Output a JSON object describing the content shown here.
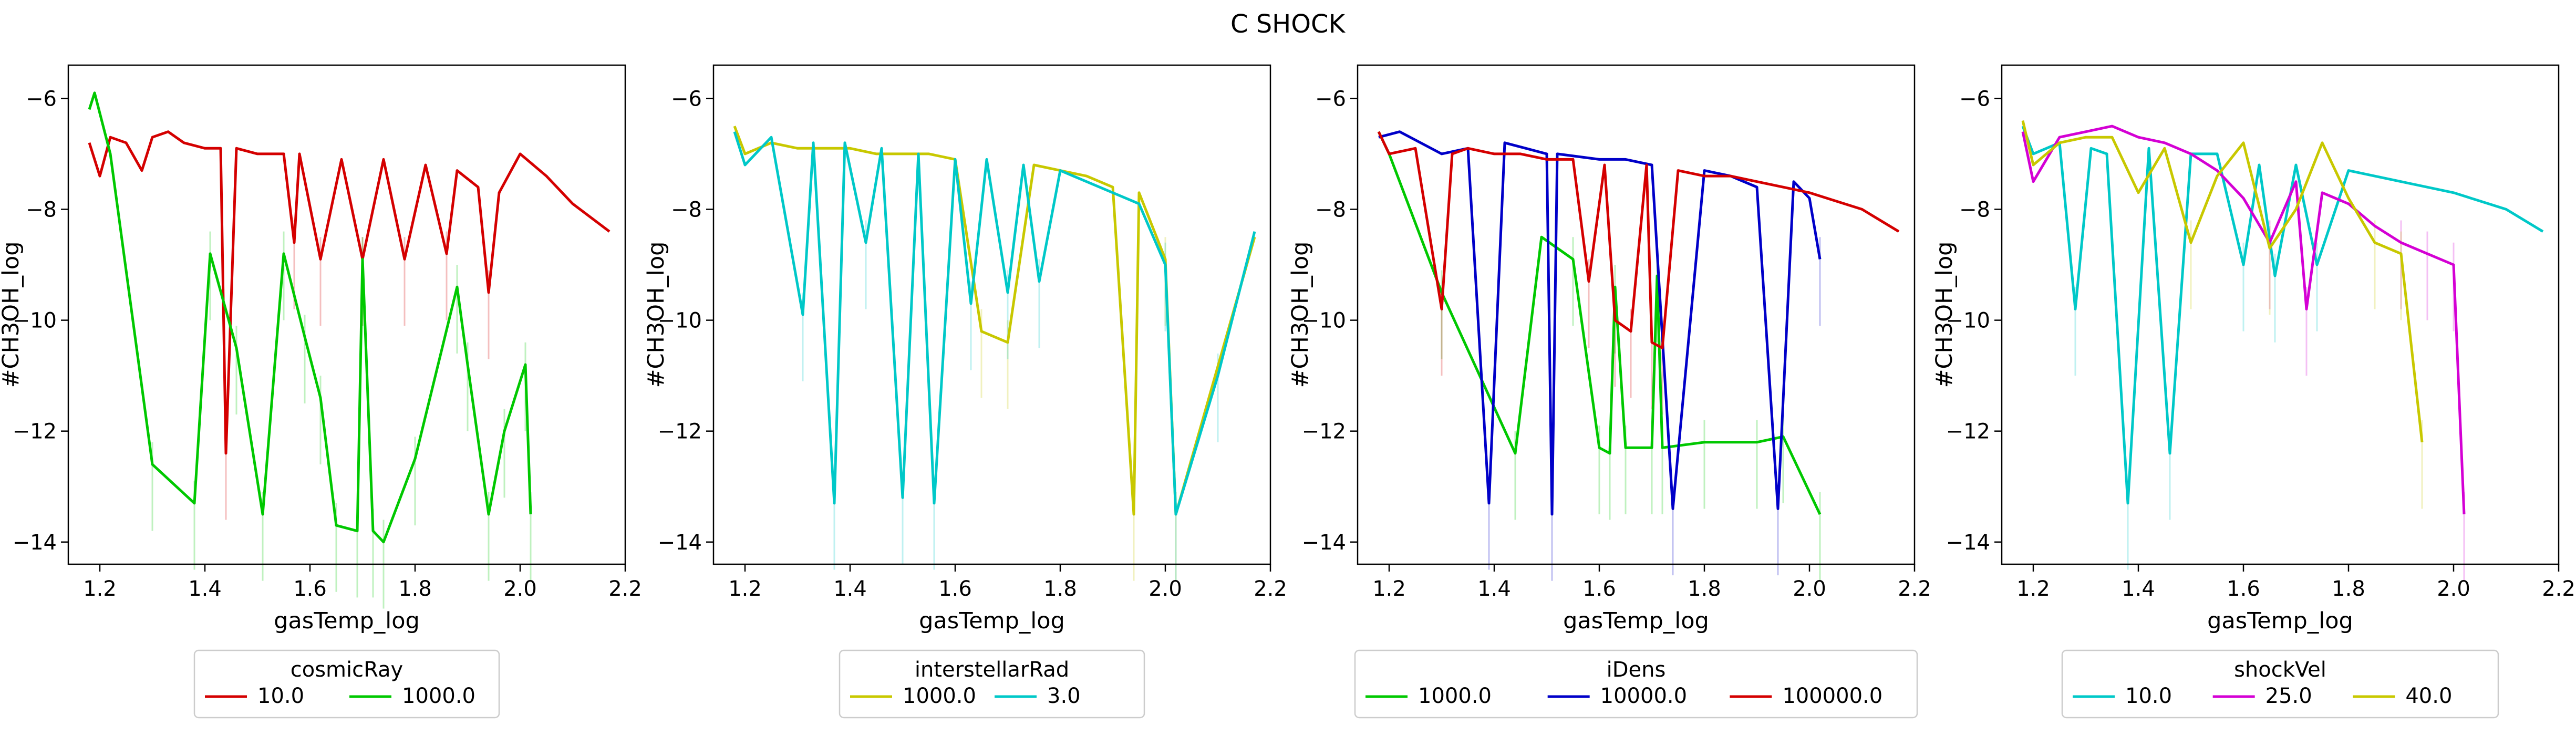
{
  "figure_title": "C SHOCK",
  "colors": {
    "red": "#d40000",
    "green": "#00c800",
    "yellow": "#c8c800",
    "cyan": "#00c8c8",
    "blue": "#0000c8",
    "magenta": "#d400d4"
  },
  "chart_data": [
    {
      "type": "line",
      "xlabel": "gasTemp_log",
      "ylabel": "#CH3OH_log",
      "xlim": [
        1.14,
        2.2
      ],
      "ylim": [
        -14.4,
        -5.4
      ],
      "xticks": [
        "1.2",
        "1.4",
        "1.6",
        "1.8",
        "2.0",
        "2.2"
      ],
      "yticks": [
        "-6",
        "-8",
        "-10",
        "-12",
        "-14"
      ],
      "legend": {
        "title": "cosmicRay",
        "position": "below"
      },
      "series": [
        {
          "name": "10.0",
          "color": "#d40000",
          "x": [
            1.18,
            1.2,
            1.22,
            1.25,
            1.28,
            1.3,
            1.33,
            1.36,
            1.4,
            1.43,
            1.44,
            1.46,
            1.5,
            1.55,
            1.57,
            1.58,
            1.62,
            1.66,
            1.7,
            1.74,
            1.78,
            1.82,
            1.86,
            1.88,
            1.92,
            1.94,
            1.96,
            2.0,
            2.05,
            2.1,
            2.17
          ],
          "y": [
            -6.8,
            -7.4,
            -6.7,
            -6.8,
            -7.3,
            -6.7,
            -6.6,
            -6.8,
            -6.9,
            -6.9,
            -12.4,
            -6.9,
            -7.0,
            -7.0,
            -8.6,
            -7.0,
            -8.9,
            -7.1,
            -8.9,
            -7.1,
            -8.9,
            -7.2,
            -8.8,
            -7.3,
            -7.6,
            -9.5,
            -7.7,
            -7.0,
            -7.4,
            -7.9,
            -8.4
          ]
        },
        {
          "name": "1000.0",
          "color": "#00c800",
          "x": [
            1.18,
            1.19,
            1.22,
            1.3,
            1.38,
            1.41,
            1.46,
            1.51,
            1.55,
            1.59,
            1.62,
            1.65,
            1.69,
            1.7,
            1.72,
            1.74,
            1.8,
            1.88,
            1.9,
            1.94,
            1.97,
            2.01,
            2.02
          ],
          "y": [
            -6.2,
            -5.9,
            -7.0,
            -12.6,
            -13.3,
            -8.8,
            -10.5,
            -13.5,
            -8.8,
            -10.3,
            -11.4,
            -13.7,
            -13.8,
            -8.9,
            -13.8,
            -14.0,
            -12.5,
            -9.4,
            -10.8,
            -13.5,
            -12.0,
            -10.8,
            -13.5
          ]
        }
      ]
    },
    {
      "type": "line",
      "xlabel": "gasTemp_log",
      "ylabel": "#CH3OH_log",
      "xlim": [
        1.14,
        2.2
      ],
      "ylim": [
        -14.4,
        -5.4
      ],
      "xticks": [
        "1.2",
        "1.4",
        "1.6",
        "1.8",
        "2.0",
        "2.2"
      ],
      "yticks": [
        "-6",
        "-8",
        "-10",
        "-12",
        "-14"
      ],
      "legend": {
        "title": "interstellarRad",
        "position": "below"
      },
      "series": [
        {
          "name": "1000.0",
          "color": "#c8c800",
          "x": [
            1.18,
            1.2,
            1.25,
            1.3,
            1.35,
            1.4,
            1.45,
            1.5,
            1.55,
            1.6,
            1.65,
            1.7,
            1.75,
            1.8,
            1.85,
            1.9,
            1.94,
            1.95,
            2.0,
            2.02,
            2.17
          ],
          "y": [
            -6.5,
            -7.0,
            -6.8,
            -6.9,
            -6.9,
            -6.9,
            -7.0,
            -7.0,
            -7.0,
            -7.1,
            -10.2,
            -10.4,
            -7.2,
            -7.3,
            -7.4,
            -7.6,
            -13.5,
            -7.7,
            -8.9,
            -13.5,
            -8.5
          ]
        },
        {
          "name": "3.0",
          "color": "#00c8c8",
          "x": [
            1.18,
            1.2,
            1.25,
            1.31,
            1.33,
            1.37,
            1.39,
            1.43,
            1.46,
            1.5,
            1.53,
            1.56,
            1.6,
            1.63,
            1.66,
            1.7,
            1.73,
            1.76,
            1.8,
            1.85,
            1.9,
            1.95,
            2.0,
            2.02,
            2.1,
            2.17
          ],
          "y": [
            -6.6,
            -7.2,
            -6.7,
            -9.9,
            -6.8,
            -13.3,
            -6.8,
            -8.6,
            -6.9,
            -13.2,
            -7.0,
            -13.3,
            -7.1,
            -9.7,
            -7.1,
            -9.5,
            -7.2,
            -9.3,
            -7.3,
            -7.5,
            -7.7,
            -7.9,
            -9.0,
            -13.5,
            -11.0,
            -8.4
          ]
        }
      ]
    },
    {
      "type": "line",
      "xlabel": "gasTemp_log",
      "ylabel": "#CH3OH_log",
      "xlim": [
        1.14,
        2.2
      ],
      "ylim": [
        -14.4,
        -5.4
      ],
      "xticks": [
        "1.2",
        "1.4",
        "1.6",
        "1.8",
        "2.0",
        "2.2"
      ],
      "yticks": [
        "-6",
        "-8",
        "-10",
        "-12",
        "-14"
      ],
      "legend": {
        "title": "iDens",
        "position": "below"
      },
      "series": [
        {
          "name": "1000.0",
          "color": "#00c800",
          "x": [
            1.18,
            1.2,
            1.3,
            1.44,
            1.49,
            1.55,
            1.6,
            1.62,
            1.63,
            1.65,
            1.7,
            1.71,
            1.72,
            1.8,
            1.9,
            1.95,
            2.02
          ],
          "y": [
            -6.6,
            -7.0,
            -9.5,
            -12.4,
            -8.5,
            -8.9,
            -12.3,
            -12.4,
            -9.4,
            -12.3,
            -12.3,
            -9.2,
            -12.3,
            -12.2,
            -12.2,
            -12.1,
            -13.5
          ]
        },
        {
          "name": "10000.0",
          "color": "#0000c8",
          "x": [
            1.18,
            1.22,
            1.26,
            1.3,
            1.35,
            1.39,
            1.42,
            1.46,
            1.5,
            1.51,
            1.52,
            1.6,
            1.65,
            1.7,
            1.74,
            1.8,
            1.85,
            1.9,
            1.94,
            1.97,
            2.0,
            2.02
          ],
          "y": [
            -6.7,
            -6.6,
            -6.8,
            -7.0,
            -6.9,
            -13.3,
            -6.8,
            -6.9,
            -7.0,
            -13.5,
            -7.0,
            -7.1,
            -7.1,
            -7.2,
            -13.4,
            -7.3,
            -7.4,
            -7.6,
            -13.4,
            -7.5,
            -7.8,
            -8.9
          ]
        },
        {
          "name": "100000.0",
          "color": "#d40000",
          "x": [
            1.18,
            1.2,
            1.25,
            1.3,
            1.32,
            1.35,
            1.4,
            1.45,
            1.5,
            1.55,
            1.58,
            1.61,
            1.63,
            1.66,
            1.69,
            1.7,
            1.72,
            1.75,
            1.8,
            1.85,
            1.9,
            1.95,
            2.0,
            2.1,
            2.17
          ],
          "y": [
            -6.6,
            -7.0,
            -6.9,
            -9.8,
            -7.0,
            -6.9,
            -7.0,
            -7.0,
            -7.1,
            -7.1,
            -9.3,
            -7.2,
            -10.0,
            -10.2,
            -7.2,
            -10.4,
            -10.5,
            -7.3,
            -7.4,
            -7.4,
            -7.5,
            -7.6,
            -7.7,
            -8.0,
            -8.4
          ]
        }
      ]
    },
    {
      "type": "line",
      "xlabel": "gasTemp_log",
      "ylabel": "#CH3OH_log",
      "xlim": [
        1.14,
        2.2
      ],
      "ylim": [
        -14.4,
        -5.4
      ],
      "xticks": [
        "1.2",
        "1.4",
        "1.6",
        "1.8",
        "2.0",
        "2.2"
      ],
      "yticks": [
        "-6",
        "-8",
        "-10",
        "-12",
        "-14"
      ],
      "legend": {
        "title": "shockVel",
        "position": "below"
      },
      "series": [
        {
          "name": "10.0",
          "color": "#00c8c8",
          "x": [
            1.18,
            1.2,
            1.25,
            1.28,
            1.31,
            1.34,
            1.38,
            1.42,
            1.46,
            1.5,
            1.55,
            1.6,
            1.63,
            1.66,
            1.7,
            1.74,
            1.8,
            1.9,
            2.0,
            2.1,
            2.17
          ],
          "y": [
            -6.5,
            -7.0,
            -6.8,
            -9.8,
            -6.9,
            -7.0,
            -13.3,
            -6.9,
            -12.4,
            -7.0,
            -7.0,
            -9.0,
            -7.2,
            -9.2,
            -7.2,
            -9.0,
            -7.3,
            -7.5,
            -7.7,
            -8.0,
            -8.4
          ]
        },
        {
          "name": "25.0",
          "color": "#d400d4",
          "x": [
            1.18,
            1.2,
            1.25,
            1.3,
            1.35,
            1.4,
            1.45,
            1.5,
            1.55,
            1.6,
            1.65,
            1.7,
            1.72,
            1.75,
            1.8,
            1.85,
            1.9,
            1.95,
            2.0,
            2.02
          ],
          "y": [
            -6.6,
            -7.5,
            -6.7,
            -6.6,
            -6.5,
            -6.7,
            -6.8,
            -7.0,
            -7.3,
            -7.8,
            -8.6,
            -7.5,
            -9.8,
            -7.7,
            -7.9,
            -8.3,
            -8.6,
            -8.8,
            -9.0,
            -13.5
          ]
        },
        {
          "name": "40.0",
          "color": "#c8c800",
          "x": [
            1.18,
            1.2,
            1.25,
            1.3,
            1.35,
            1.4,
            1.45,
            1.5,
            1.55,
            1.6,
            1.65,
            1.7,
            1.75,
            1.8,
            1.85,
            1.9,
            1.94
          ],
          "y": [
            -6.4,
            -7.2,
            -6.8,
            -6.7,
            -6.7,
            -7.7,
            -6.9,
            -8.6,
            -7.4,
            -6.8,
            -8.7,
            -8.0,
            -6.8,
            -7.8,
            -8.6,
            -8.8,
            -12.2
          ]
        }
      ]
    }
  ]
}
